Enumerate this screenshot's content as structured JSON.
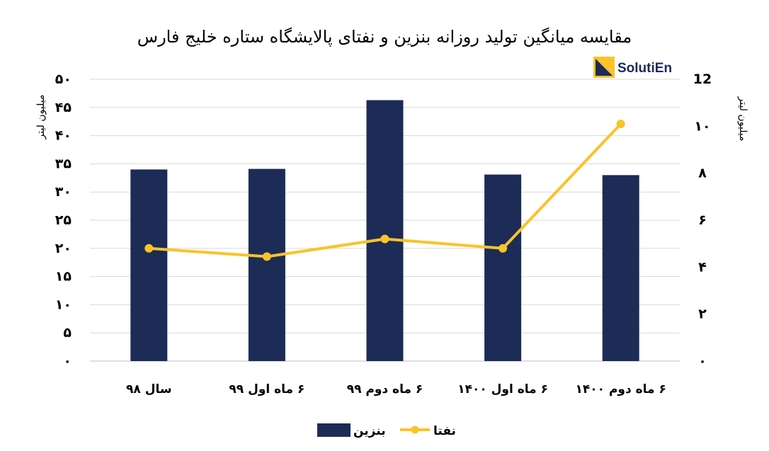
{
  "chart_data": {
    "type": "bar+line",
    "title": "مقایسه میانگین تولید روزانه بنزین و نفتای پالایشگاه ستاره خلیج فارس",
    "categories": [
      "سال ۹۸",
      "۶ ماه اول ۹۹",
      "۶ ماه دوم ۹۹",
      "۶ ماه اول ۱۴۰۰",
      "۶ ماه دوم ۱۴۰۰"
    ],
    "series": [
      {
        "name": "بنزین",
        "type": "bar",
        "axis": "left",
        "color": "#1c2c56",
        "values": [
          34,
          34.1,
          46.3,
          33.1,
          33
        ]
      },
      {
        "name": "نفتا",
        "type": "line",
        "axis": "right",
        "color": "#fac32a",
        "values": [
          4.8,
          4.45,
          5.2,
          4.8,
          10.1
        ]
      }
    ],
    "ylabel": "میلیون لیتر",
    "ylabel_right": "میلیون لیتر",
    "ylim": [
      0,
      50
    ],
    "ylim_right": [
      0,
      12
    ],
    "yticks": [
      0,
      5,
      10,
      15,
      20,
      25,
      30,
      35,
      40,
      45,
      50
    ],
    "yticks_right": [
      0,
      2,
      4,
      6,
      8,
      10,
      12
    ],
    "ytick_labels": [
      "۰",
      "۵",
      "۱۰",
      "۱۵",
      "۲۰",
      "۲۵",
      "۳۰",
      "۳۵",
      "۴۰",
      "۴۵",
      "۵۰"
    ],
    "ytick_labels_right": [
      "۰",
      "۲",
      "۴",
      "۶",
      "۸",
      "۱۰",
      "12"
    ],
    "grid": true,
    "legend_position": "bottom"
  },
  "logo": {
    "text": "SolutiEn",
    "colors": [
      "#fac32a",
      "#1b2a5a"
    ]
  }
}
